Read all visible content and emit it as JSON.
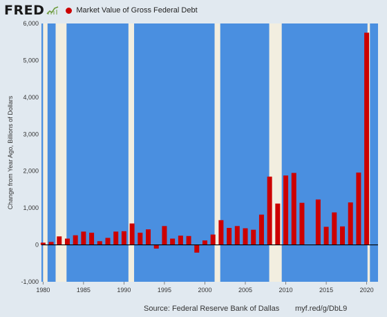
{
  "header": {
    "logo_text": "FRED",
    "logo_mark": "trend-line-icon"
  },
  "footer": {
    "source": "Source: Federal Reserve Bank of Dallas",
    "url": "myf.red/g/DbL9"
  },
  "colors": {
    "background": "#e1e9f0",
    "plot_background": "#4a8fe0",
    "recession_band": "#f2eee0",
    "bar": "#cc0000",
    "zero_line": "#000000"
  },
  "chart_data": {
    "type": "bar",
    "title": "",
    "xlabel": "",
    "ylabel": "Change from Year Ago, Billions of Dollars",
    "ylim": [
      -1000,
      6000
    ],
    "xlim": [
      1979.8,
      2021.4
    ],
    "yticks": [
      -1000,
      0,
      1000,
      2000,
      3000,
      4000,
      5000,
      6000
    ],
    "ytick_labels": [
      "-1,000",
      "0",
      "1,000",
      "2,000",
      "3,000",
      "4,000",
      "5,000",
      "6,000"
    ],
    "xticks": [
      1980,
      1985,
      1990,
      1995,
      2000,
      2005,
      2010,
      2015,
      2020
    ],
    "xtick_labels": [
      "1980",
      "1985",
      "1990",
      "1995",
      "2000",
      "2005",
      "2010",
      "2015",
      "2020"
    ],
    "recessions": [
      [
        1980.0,
        1980.55
      ],
      [
        1981.55,
        1982.9
      ],
      [
        1990.55,
        1991.25
      ],
      [
        2001.2,
        2001.9
      ],
      [
        2007.95,
        2009.5
      ],
      [
        2020.1,
        2020.4
      ]
    ],
    "series": [
      {
        "name": "Market Value of Gross Federal Debt",
        "x": [
          1980,
          1981,
          1982,
          1983,
          1984,
          1985,
          1986,
          1987,
          1988,
          1989,
          1990,
          1991,
          1992,
          1993,
          1994,
          1995,
          1996,
          1997,
          1998,
          1999,
          2000,
          2001,
          2002,
          2003,
          2004,
          2005,
          2006,
          2007,
          2008,
          2009,
          2010,
          2011,
          2012,
          2014,
          2015,
          2016,
          2017,
          2018,
          2019,
          2020
        ],
        "values": [
          60,
          80,
          230,
          170,
          260,
          360,
          330,
          100,
          190,
          360,
          370,
          580,
          330,
          420,
          -100,
          510,
          170,
          250,
          240,
          -210,
          120,
          280,
          670,
          460,
          510,
          450,
          410,
          820,
          1850,
          1120,
          1880,
          1950,
          1140,
          1230,
          490,
          880,
          500,
          1150,
          1960,
          5750
        ]
      }
    ]
  }
}
